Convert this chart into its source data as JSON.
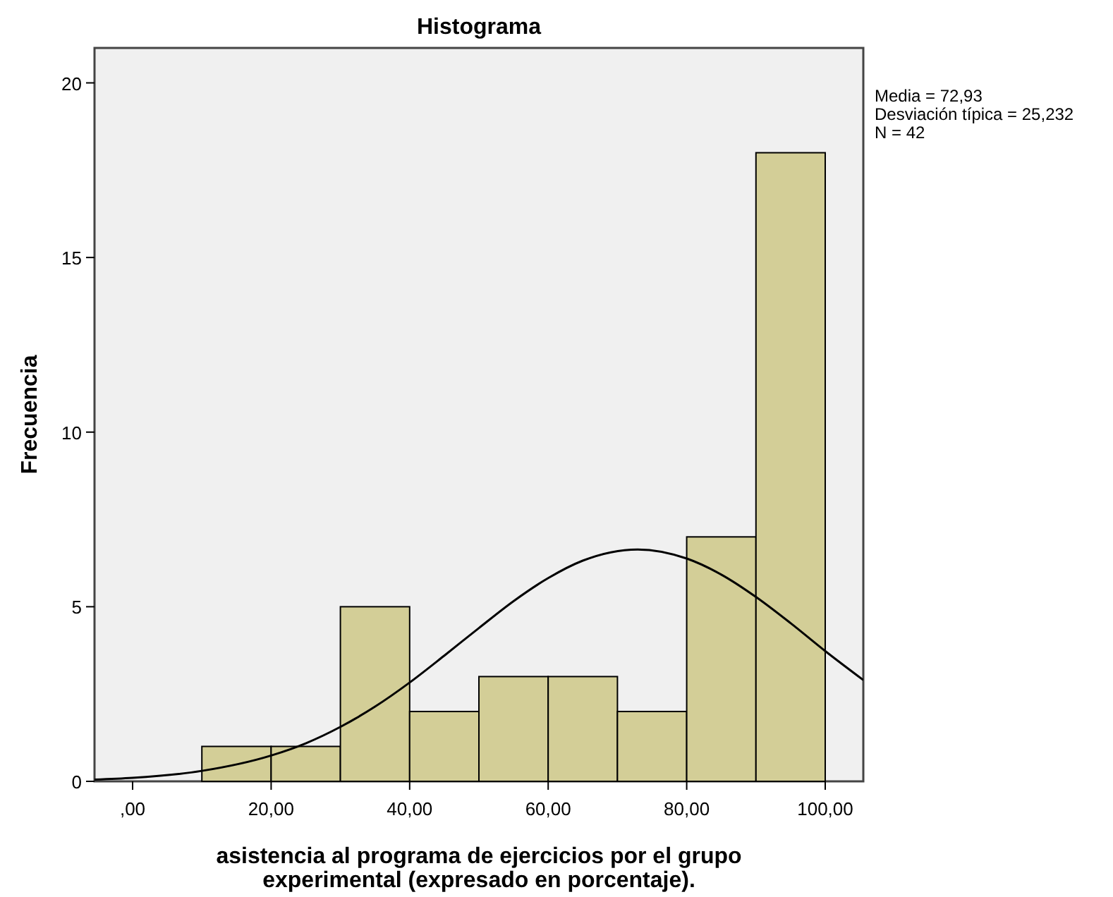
{
  "chart_data": {
    "type": "histogram",
    "title": "Histograma",
    "xlabel": "asistencia al programa de ejercicios por el grupo experimental (expresado en porcentaje).",
    "ylabel": "Frecuencia",
    "bins": [
      10,
      20,
      30,
      40,
      50,
      60,
      70,
      80,
      90,
      100
    ],
    "values": [
      1,
      1,
      5,
      2,
      3,
      3,
      2,
      7,
      18
    ],
    "color": "#d3ce97",
    "series": [
      {
        "type": "line",
        "color": "#000000",
        "x": [
          -5.5,
          0,
          10,
          20,
          25,
          30,
          35,
          40,
          45,
          50,
          55,
          60,
          65,
          72.93,
          80,
          85,
          90,
          95,
          100,
          105.5
        ],
        "values": [
          0.05,
          0.1,
          0.3,
          0.74,
          1.09,
          1.56,
          2.14,
          2.83,
          3.6,
          4.39,
          5.16,
          5.82,
          6.32,
          6.64,
          6.38,
          5.92,
          5.28,
          4.53,
          3.73,
          2.9
        ]
      }
    ],
    "xlim": [
      -5.5,
      105.5
    ],
    "ylim": [
      0,
      21
    ],
    "xticks": [
      {
        "value": 0,
        "label": ",00"
      },
      {
        "value": 20,
        "label": "20,00"
      },
      {
        "value": 40,
        "label": "40,00"
      },
      {
        "value": 60,
        "label": "60,00"
      },
      {
        "value": 80,
        "label": "80,00"
      },
      {
        "value": 100,
        "label": "100,00"
      }
    ],
    "yticks": [
      0,
      5,
      10,
      15,
      20
    ],
    "annotations": [
      "Media = 72,93",
      "Desviación típica = 25,232",
      "N = 42"
    ],
    "grid": false,
    "marker": "none",
    "line_style": "solid"
  }
}
